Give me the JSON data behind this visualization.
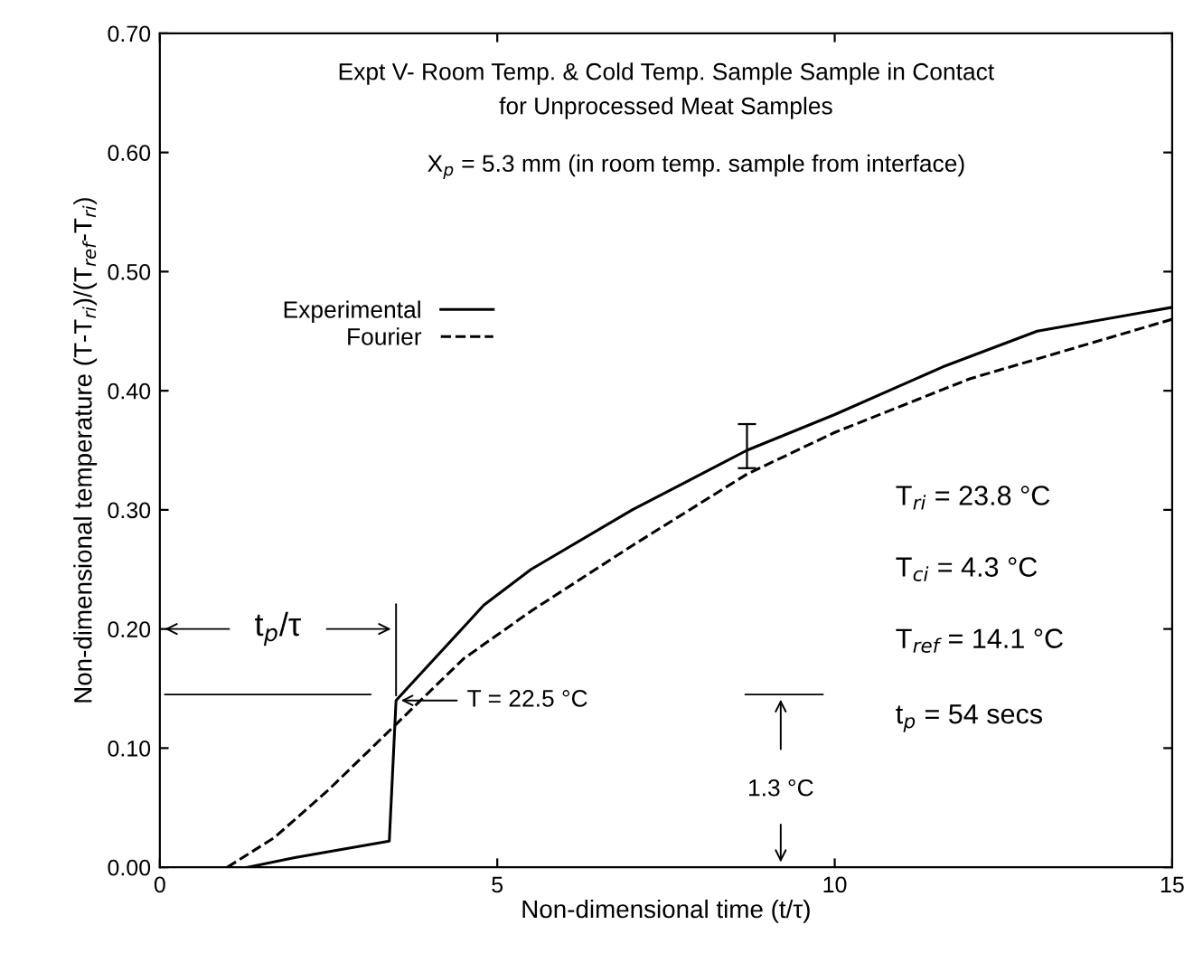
{
  "chart_data": {
    "type": "line",
    "title": "Expt V- Room Temp. & Cold Temp. Sample Sample in Contact\nfor Unprocessed Meat Samples",
    "subtitle": "X$_{p}$ = 5.3 mm (in room temp. sample from interface)",
    "xlabel": "Non-dimensional time (t/τ)",
    "ylabel": "Non-dimensional temperature (T-T$_{ri}$)/(T$_{ref}$-T$_{ri}$)",
    "xlim": [
      0,
      15
    ],
    "xticks": [
      0,
      5,
      10,
      15
    ],
    "ylim": [
      0,
      0.7
    ],
    "yticks": [
      {
        "value": 0,
        "label": "0.00"
      },
      {
        "value": 0.1,
        "label": "0.10"
      },
      {
        "value": 0.2,
        "label": "0.20"
      },
      {
        "value": 0.3,
        "label": "0.30"
      },
      {
        "value": 0.4,
        "label": "0.40"
      },
      {
        "value": 0.5,
        "label": "0.50"
      },
      {
        "value": 0.6,
        "label": "0.60"
      },
      {
        "value": 0.7,
        "label": "0.70"
      }
    ],
    "series": [
      {
        "name": "Experimental",
        "color": "#000000",
        "line_style": "solid",
        "x": [
          1.3,
          2.0,
          3.4,
          3.5,
          4.8,
          5.5,
          7.0,
          8.7,
          10.0,
          11.6,
          13.0,
          15.0
        ],
        "values": [
          0.0,
          0.008,
          0.022,
          0.14,
          0.22,
          0.25,
          0.3,
          0.35,
          0.38,
          0.42,
          0.45,
          0.47
        ],
        "errors": [
          null,
          null,
          null,
          null,
          null,
          null,
          null,
          [
            0.335,
            0.372
          ],
          null,
          null,
          null,
          null
        ]
      },
      {
        "name": "Fourier",
        "color": "#000000",
        "line_style": "dashed",
        "x": [
          1.0,
          1.7,
          2.5,
          3.5,
          4.5,
          5.5,
          7.0,
          8.7,
          10.0,
          12.0,
          15.0
        ],
        "values": [
          0.0,
          0.025,
          0.065,
          0.12,
          0.175,
          0.215,
          0.27,
          0.33,
          0.365,
          0.41,
          0.46
        ]
      }
    ],
    "legend": "left",
    "grid": false,
    "annotations": [
      "T$_{ri}$ = 23.8 °C",
      "T$_{ci}$ = 4.3 °C",
      "T$_{ref}$ = 14.1 °C",
      "t$_{p}$ = 54 secs",
      "t$_{p}$/τ",
      {
        "text": "T = 22.5 °C",
        "x": 3.5,
        "y": 0.14
      },
      "1.3 °C"
    ]
  }
}
